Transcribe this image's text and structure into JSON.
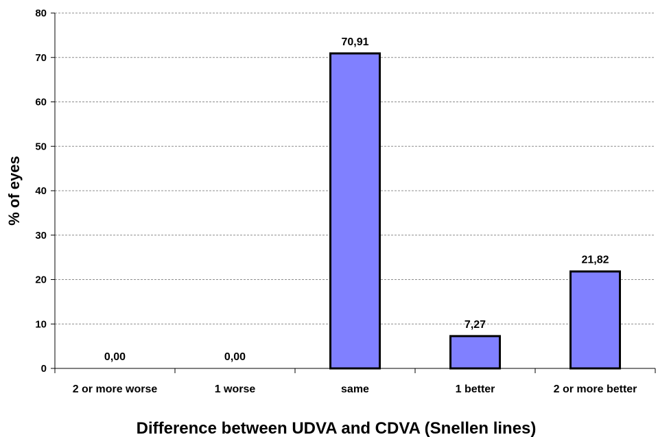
{
  "chart_data": {
    "type": "bar",
    "xlabel": "Difference between UDVA and CDVA (Snellen lines)",
    "ylabel": "% of eyes",
    "categories": [
      "2 or more worse",
      "1 worse",
      "same",
      "1 better",
      "2 or more better"
    ],
    "values": [
      0.0,
      0.0,
      70.91,
      7.27,
      21.82
    ],
    "data_labels": [
      "0,00",
      "0,00",
      "70,91",
      "7,27",
      "21,82"
    ],
    "ylim": [
      0,
      80
    ],
    "yticks": [
      0,
      10,
      20,
      30,
      40,
      50,
      60,
      70,
      80
    ],
    "grid": "horizontal-dashed",
    "colors": {
      "bar": "#8080FF",
      "bar_border": "#000000",
      "grid": "#8c8c8c"
    }
  }
}
